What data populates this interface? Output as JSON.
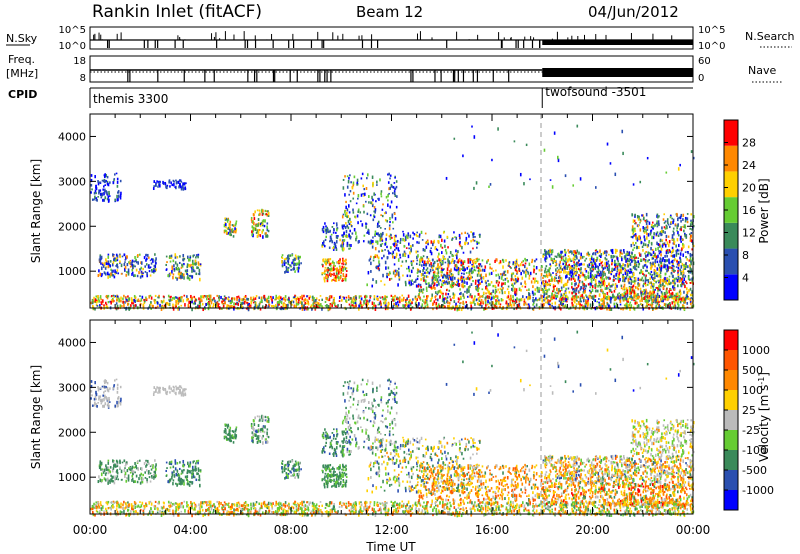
{
  "header": {
    "station": "Rankin Inlet (fitACF)",
    "beam": "Beam 12",
    "date": "04/Jun/2012"
  },
  "top_panels": {
    "nsky_label": "N.Sky",
    "nsky_ticks": [
      "10^5",
      "10^0"
    ],
    "nsearch_label": "N.Search",
    "nsearch_ticks": [
      "10^5",
      "10^0"
    ],
    "freq_label_1": "Freq.",
    "freq_label_2": "[MHz]",
    "freq_ticks": [
      "18",
      "8"
    ],
    "nave_label": "Nave",
    "nave_ticks": [
      "60",
      "0"
    ],
    "cpid_label": "CPID",
    "cpid_segments": [
      {
        "name": "themis 3300",
        "start_hour": 0
      },
      {
        "name": "twofsound -3501",
        "start_hour": 18
      }
    ]
  },
  "chart_data": [
    {
      "type": "heatmap",
      "title": "",
      "xlabel": "",
      "ylabel": "Slant Range [km]",
      "xlim": [
        0,
        24
      ],
      "ylim": [
        180,
        4500
      ],
      "yticks": [
        1000,
        2000,
        3000,
        4000
      ],
      "colorbar": {
        "label": "Power [dB]",
        "ticks": [
          "4",
          "8",
          "12",
          "16",
          "20",
          "24",
          "28"
        ],
        "colors": [
          "#0000ff",
          "#2a4fb0",
          "#3a8a5a",
          "#66cc33",
          "#ffd000",
          "#ff8800",
          "#ff0000"
        ]
      }
    },
    {
      "type": "heatmap",
      "title": "",
      "xlabel": "Time UT",
      "ylabel": "Slant Range [km]",
      "xlim": [
        0,
        24
      ],
      "ylim": [
        180,
        4500
      ],
      "yticks": [
        1000,
        2000,
        3000,
        4000
      ],
      "xticks": [
        "00:00",
        "04:00",
        "08:00",
        "12:00",
        "16:00",
        "20:00",
        "00:00"
      ],
      "colorbar": {
        "label": "Velocity [m s^-1]",
        "ticks": [
          "1000",
          "500",
          "100",
          "25",
          "-25",
          "-100",
          "-500",
          "-1000"
        ],
        "colors": [
          "#0000ff",
          "#2a4fb0",
          "#3a8a5a",
          "#66cc33",
          "#bbbbbb",
          "#ffd000",
          "#ff8800",
          "#ff5500",
          "#ff0000"
        ]
      }
    }
  ]
}
